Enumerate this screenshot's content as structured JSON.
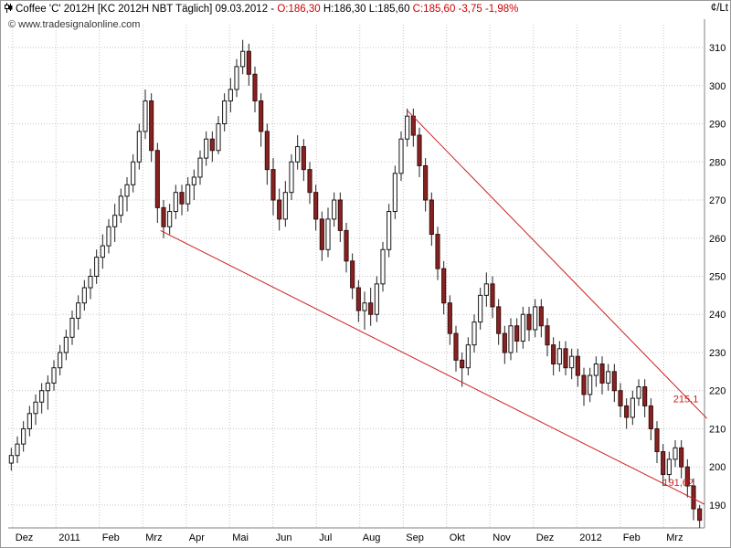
{
  "header": {
    "segments": [
      {
        "text": "Coffee 'C' 2012H [KC 2012H NBT  Täglich]  09.03.2012 - ",
        "color": "#000000"
      },
      {
        "text": "O:186,30",
        "color": "#cc0000"
      },
      {
        "text": " H:186,30 L:185,60 ",
        "color": "#000000"
      },
      {
        "text": "C:185,60 -3,75 -1,98%",
        "color": "#cc0000"
      }
    ],
    "unit": "¢/Lt"
  },
  "watermark": "© www.tradesignalonline.com",
  "chart_data": {
    "type": "candlestick",
    "title": "Coffee 'C' 2012H [KC 2012H NBT Täglich]",
    "date": "09.03.2012",
    "last_quote": {
      "open": "186,30",
      "high": "186,30",
      "low": "185,60",
      "close": "185,60",
      "change": "-3,75",
      "change_pct": "-1,98%"
    },
    "ylabel": "¢/Lt",
    "ylim": [
      184,
      316
    ],
    "yticks": [
      190,
      200,
      210,
      220,
      230,
      240,
      250,
      260,
      270,
      280,
      290,
      300,
      310
    ],
    "x_labels": [
      "Dez",
      "2011",
      "Feb",
      "Mrz",
      "Apr",
      "Mai",
      "Jun",
      "Jul",
      "Aug",
      "Sep",
      "Okt",
      "Nov",
      "Dez",
      "2012",
      "Feb",
      "Mrz"
    ],
    "grid": true,
    "legend": "none",
    "candles": [
      [
        201,
        205,
        199,
        203
      ],
      [
        203,
        208,
        201,
        206
      ],
      [
        206,
        212,
        204,
        210
      ],
      [
        210,
        216,
        208,
        214
      ],
      [
        214,
        219,
        211,
        217
      ],
      [
        217,
        222,
        214,
        220
      ],
      [
        220,
        224,
        215,
        222
      ],
      [
        222,
        228,
        220,
        226
      ],
      [
        226,
        232,
        224,
        230
      ],
      [
        230,
        236,
        228,
        234
      ],
      [
        234,
        241,
        232,
        239
      ],
      [
        239,
        245,
        236,
        243
      ],
      [
        243,
        249,
        241,
        247
      ],
      [
        247,
        252,
        244,
        250
      ],
      [
        250,
        257,
        248,
        255
      ],
      [
        255,
        261,
        252,
        258
      ],
      [
        258,
        265,
        256,
        263
      ],
      [
        263,
        269,
        259,
        266
      ],
      [
        266,
        273,
        264,
        271
      ],
      [
        271,
        276,
        267,
        274
      ],
      [
        274,
        282,
        272,
        280
      ],
      [
        280,
        290,
        278,
        288
      ],
      [
        288,
        299,
        286,
        296
      ],
      [
        296,
        298,
        280,
        283
      ],
      [
        283,
        285,
        264,
        268
      ],
      [
        268,
        270,
        260,
        263
      ],
      [
        263,
        269,
        261,
        267
      ],
      [
        267,
        274,
        265,
        272
      ],
      [
        272,
        274,
        266,
        269
      ],
      [
        269,
        276,
        267,
        274
      ],
      [
        274,
        278,
        270,
        276
      ],
      [
        276,
        283,
        274,
        281
      ],
      [
        281,
        288,
        279,
        286
      ],
      [
        286,
        288,
        280,
        283
      ],
      [
        283,
        292,
        282,
        290
      ],
      [
        290,
        298,
        288,
        296
      ],
      [
        296,
        302,
        293,
        299
      ],
      [
        299,
        307,
        297,
        305
      ],
      [
        305,
        312,
        303,
        309
      ],
      [
        309,
        311,
        300,
        303
      ],
      [
        303,
        305,
        293,
        296
      ],
      [
        296,
        298,
        284,
        288
      ],
      [
        288,
        290,
        274,
        278
      ],
      [
        278,
        281,
        266,
        270
      ],
      [
        270,
        273,
        262,
        265
      ],
      [
        265,
        275,
        263,
        272
      ],
      [
        272,
        282,
        270,
        280
      ],
      [
        280,
        287,
        278,
        284
      ],
      [
        284,
        286,
        275,
        278
      ],
      [
        278,
        280,
        269,
        272
      ],
      [
        272,
        274,
        262,
        265
      ],
      [
        265,
        267,
        254,
        257
      ],
      [
        257,
        268,
        255,
        265
      ],
      [
        265,
        272,
        263,
        270
      ],
      [
        270,
        272,
        259,
        262
      ],
      [
        262,
        264,
        251,
        254
      ],
      [
        254,
        256,
        244,
        247
      ],
      [
        247,
        249,
        238,
        241
      ],
      [
        241,
        246,
        236,
        243
      ],
      [
        243,
        247,
        237,
        240
      ],
      [
        240,
        250,
        238,
        248
      ],
      [
        248,
        259,
        246,
        257
      ],
      [
        257,
        269,
        255,
        267
      ],
      [
        267,
        279,
        265,
        277
      ],
      [
        277,
        288,
        275,
        286
      ],
      [
        286,
        294,
        284,
        292
      ],
      [
        292,
        294,
        284,
        287
      ],
      [
        287,
        289,
        276,
        279
      ],
      [
        279,
        281,
        267,
        270
      ],
      [
        270,
        272,
        258,
        261
      ],
      [
        261,
        263,
        249,
        252
      ],
      [
        252,
        254,
        240,
        243
      ],
      [
        243,
        245,
        232,
        235
      ],
      [
        235,
        237,
        225,
        228
      ],
      [
        228,
        230,
        221,
        226
      ],
      [
        226,
        234,
        224,
        232
      ],
      [
        232,
        240,
        230,
        238
      ],
      [
        238,
        247,
        236,
        245
      ],
      [
        245,
        251,
        242,
        248
      ],
      [
        248,
        250,
        239,
        242
      ],
      [
        242,
        244,
        232,
        235
      ],
      [
        235,
        237,
        227,
        230
      ],
      [
        230,
        239,
        228,
        237
      ],
      [
        237,
        239,
        230,
        233
      ],
      [
        233,
        242,
        231,
        240
      ],
      [
        240,
        242,
        233,
        236
      ],
      [
        236,
        244,
        234,
        242
      ],
      [
        242,
        244,
        234,
        237
      ],
      [
        237,
        239,
        229,
        232
      ],
      [
        232,
        234,
        224,
        227
      ],
      [
        227,
        233,
        225,
        231
      ],
      [
        231,
        233,
        224,
        226
      ],
      [
        226,
        231,
        223,
        229
      ],
      [
        229,
        231,
        221,
        224
      ],
      [
        224,
        226,
        216,
        219
      ],
      [
        219,
        226,
        217,
        224
      ],
      [
        224,
        229,
        221,
        227
      ],
      [
        227,
        229,
        219,
        222
      ],
      [
        222,
        227,
        220,
        225
      ],
      [
        225,
        227,
        217,
        220
      ],
      [
        220,
        222,
        213,
        216
      ],
      [
        216,
        218,
        210,
        213
      ],
      [
        213,
        220,
        211,
        218
      ],
      [
        218,
        223,
        216,
        221
      ],
      [
        221,
        223,
        213,
        216
      ],
      [
        216,
        218,
        207,
        210
      ],
      [
        210,
        212,
        201,
        204
      ],
      [
        204,
        206,
        195,
        198
      ],
      [
        198,
        204,
        196,
        202
      ],
      [
        202,
        207,
        200,
        205
      ],
      [
        205,
        207,
        197,
        200
      ],
      [
        200,
        202,
        192,
        195
      ],
      [
        195,
        197,
        186,
        189
      ],
      [
        189,
        190,
        184,
        186
      ]
    ],
    "trendlines": [
      {
        "i1": 24.5,
        "p1": 262.0,
        "i2": 113.8,
        "p2": 190.2,
        "label": "191,62"
      },
      {
        "i1": 65.0,
        "p1": 293.5,
        "i2": 114.2,
        "p2": 212.7,
        "label": "215,1"
      }
    ],
    "line_labels": [
      {
        "text": "215,1",
        "i": 112.8,
        "p": 217
      },
      {
        "text": "191,62",
        "i": 112.0,
        "p": 195
      }
    ],
    "colors": {
      "up_fill": "#ffffff",
      "up_stroke": "#161616",
      "down_fill": "#8a2222",
      "down_stroke": "#3a0d0d",
      "wick": "#222222",
      "trendline": "#cc2222",
      "grid": "#c4c4c4",
      "axis": "#808080",
      "tick_text": "#000000",
      "line_label": "#cc2222"
    }
  }
}
